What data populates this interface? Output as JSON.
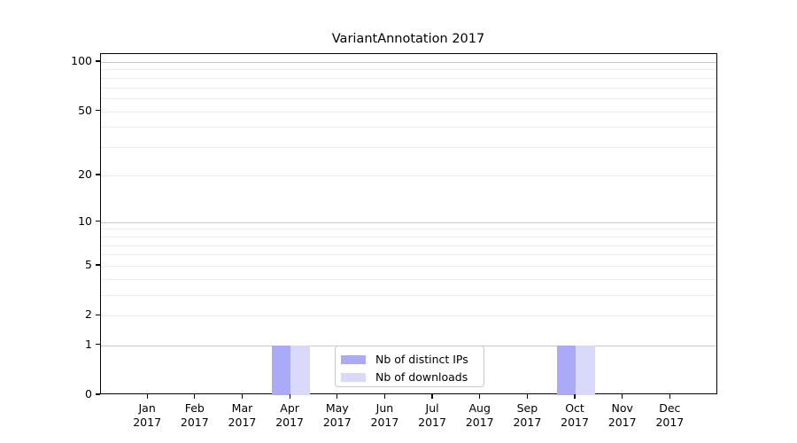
{
  "title": "VariantAnnotation 2017",
  "legend": {
    "items": [
      {
        "label": "Nb of distinct IPs",
        "color": "#aaaaf8"
      },
      {
        "label": "Nb of downloads",
        "color": "#d9d9fb"
      }
    ]
  },
  "chart_data": {
    "type": "bar",
    "title": "VariantAnnotation 2017",
    "categories": [
      "Jan",
      "Feb",
      "Mar",
      "Apr",
      "May",
      "Jun",
      "Jul",
      "Aug",
      "Sep",
      "Oct",
      "Nov",
      "Dec"
    ],
    "year_label": "2017",
    "series": [
      {
        "name": "Nb of distinct IPs",
        "color": "#aaaaf8",
        "values": [
          0,
          0,
          0,
          1,
          0,
          0,
          0,
          0,
          0,
          1,
          0,
          0
        ]
      },
      {
        "name": "Nb of downloads",
        "color": "#d9d9fb",
        "values": [
          0,
          0,
          0,
          1,
          0,
          0,
          0,
          0,
          0,
          1,
          0,
          0
        ]
      }
    ],
    "xlabel": "",
    "ylabel": "",
    "yscale": "log1p",
    "ylim": [
      0,
      100
    ],
    "ytick_values": [
      0,
      1,
      2,
      5,
      10,
      20,
      50,
      100
    ],
    "grid": true,
    "grid_values_minor": [
      2,
      3,
      4,
      5,
      6,
      7,
      8,
      9,
      20,
      30,
      40,
      50,
      60,
      70,
      80,
      90
    ],
    "grid_values_major": [
      1,
      10,
      100
    ],
    "legend_position": "lower center",
    "colors": {
      "axis": "#000000",
      "grid_minor": "#ededed",
      "grid_major": "#c9c9c9",
      "background": "#ffffff"
    }
  }
}
